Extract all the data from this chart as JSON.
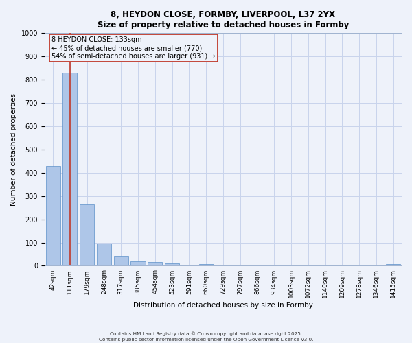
{
  "title_line1": "8, HEYDON CLOSE, FORMBY, LIVERPOOL, L37 2YX",
  "title_line2": "Size of property relative to detached houses in Formby",
  "categories": [
    "42sqm",
    "111sqm",
    "179sqm",
    "248sqm",
    "317sqm",
    "385sqm",
    "454sqm",
    "523sqm",
    "591sqm",
    "660sqm",
    "729sqm",
    "797sqm",
    "866sqm",
    "934sqm",
    "1003sqm",
    "1072sqm",
    "1140sqm",
    "1209sqm",
    "1278sqm",
    "1346sqm",
    "1415sqm"
  ],
  "values": [
    430,
    830,
    265,
    95,
    43,
    20,
    15,
    10,
    0,
    8,
    0,
    5,
    0,
    0,
    0,
    0,
    0,
    0,
    0,
    0,
    7
  ],
  "bar_color": "#aec6e8",
  "bar_edge_color": "#5b8fc9",
  "vline_x": 1,
  "vline_color": "#c0392b",
  "annotation_title": "8 HEYDON CLOSE: 133sqm",
  "annotation_line2": "← 45% of detached houses are smaller (770)",
  "annotation_line3": "54% of semi-detached houses are larger (931) →",
  "annotation_box_color": "#c0392b",
  "xlabel": "Distribution of detached houses by size in Formby",
  "ylabel": "Number of detached properties",
  "ylim": [
    0,
    1000
  ],
  "yticks": [
    0,
    100,
    200,
    300,
    400,
    500,
    600,
    700,
    800,
    900,
    1000
  ],
  "footer_line1": "Contains HM Land Registry data © Crown copyright and database right 2025.",
  "footer_line2": "Contains public sector information licensed under the Open Government Licence v3.0.",
  "background_color": "#eef2fa",
  "grid_color": "#c8d4ec"
}
